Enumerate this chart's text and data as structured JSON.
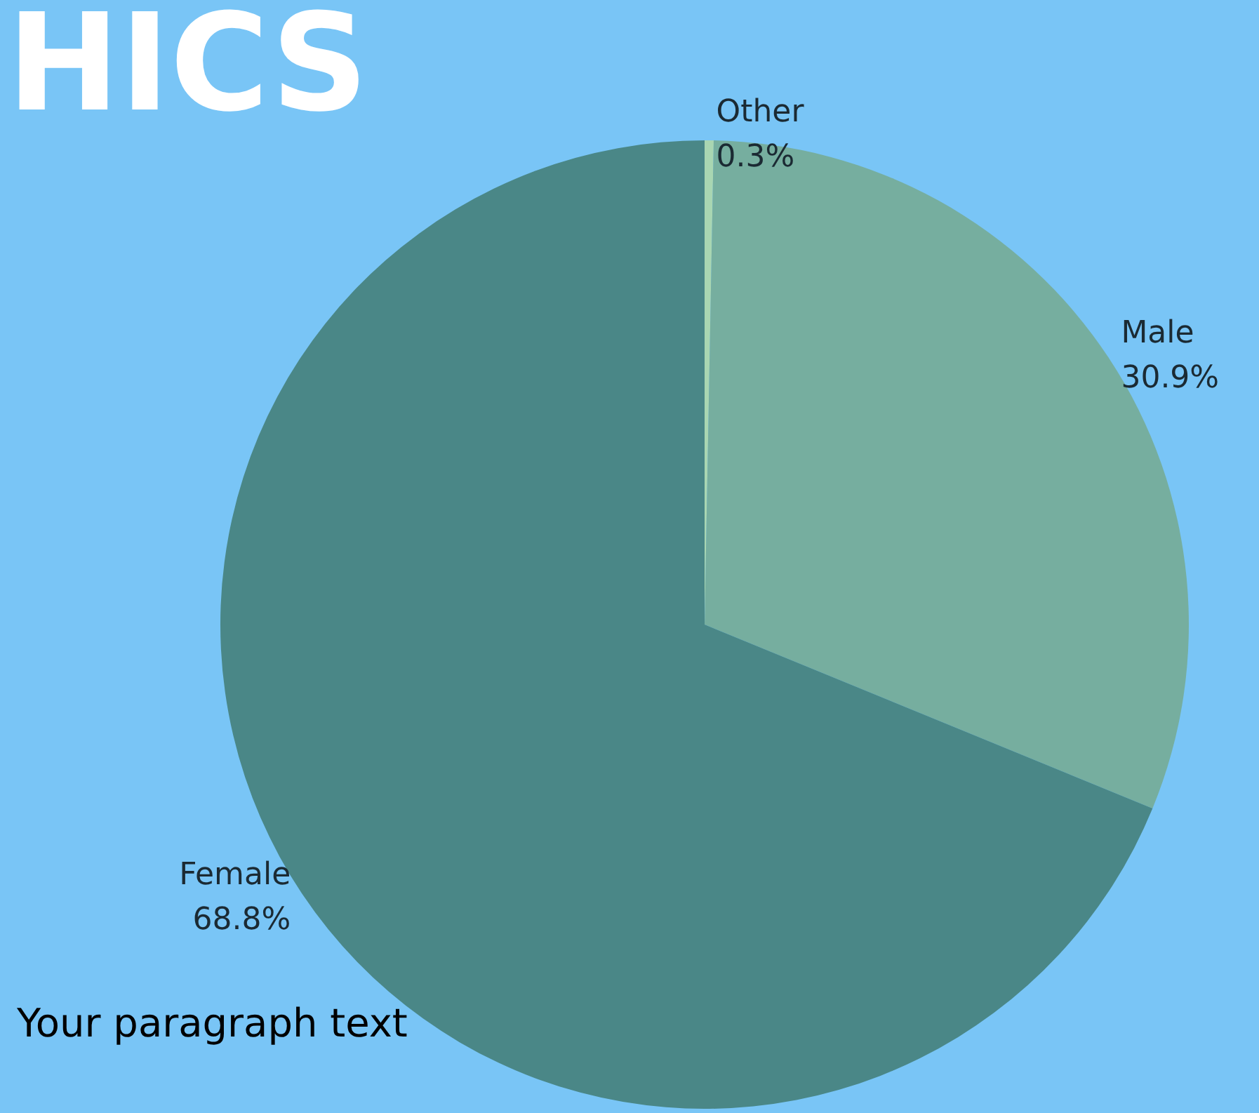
{
  "chart_data": {
    "type": "pie",
    "title": "HICS",
    "categories": [
      "Other",
      "Male",
      "Female"
    ],
    "values": [
      0.3,
      30.9,
      68.8
    ],
    "colors": [
      "#a9d6b2",
      "#76ae9f",
      "#4a8787"
    ],
    "value_labels": [
      "0.3%",
      "30.9%",
      "68.8%"
    ],
    "annotations": [
      "Your paragraph text"
    ],
    "legend": false
  }
}
